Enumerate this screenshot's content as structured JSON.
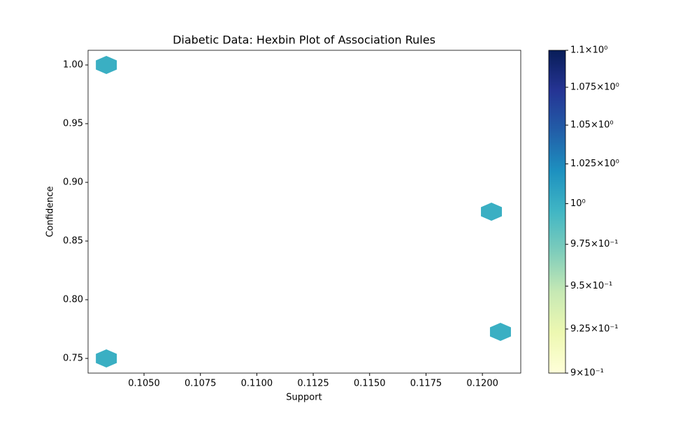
{
  "chart_data": {
    "type": "hexbin",
    "title": "Diabetic Data: Hexbin Plot of Association Rules",
    "x_label": "Support",
    "y_label": "Confidence",
    "x": [
      0.10333,
      0.10333,
      0.1204,
      0.1208
    ],
    "y": [
      1.0,
      0.75,
      0.875,
      0.7726
    ],
    "values": [
      1,
      1,
      1,
      1
    ],
    "xlim": [
      0.10252,
      0.1217
    ],
    "ylim": [
      0.7375,
      1.0125
    ],
    "xticks": [
      {
        "value": 0.105,
        "label": "0.1050"
      },
      {
        "value": 0.1075,
        "label": "0.1075"
      },
      {
        "value": 0.11,
        "label": "0.1100"
      },
      {
        "value": 0.1125,
        "label": "0.1125"
      },
      {
        "value": 0.115,
        "label": "0.1150"
      },
      {
        "value": 0.1175,
        "label": "0.1175"
      },
      {
        "value": 0.12,
        "label": "0.1200"
      }
    ],
    "yticks": [
      0.75,
      {
        "value": 0.8,
        "label": "0.80"
      },
      0.85,
      {
        "value": 0.9,
        "label": "0.90"
      },
      0.95,
      {
        "value": 1.0,
        "label": "1.00"
      }
    ],
    "colorbar": {
      "scale": "log",
      "lim": [
        0.9,
        1.1
      ],
      "ticks": [
        {
          "value": 0.9,
          "label": "9×10⁻¹"
        },
        {
          "value": 0.925,
          "label": "9.25×10⁻¹"
        },
        {
          "value": 0.95,
          "label": "9.5×10⁻¹"
        },
        {
          "value": 0.975,
          "label": "9.75×10⁻¹"
        },
        {
          "value": 1,
          "label": "10⁰"
        },
        {
          "value": 1.025,
          "label": "1.025×10⁰"
        },
        {
          "value": 1.05,
          "label": "1.05×10⁰"
        },
        {
          "value": 1.075,
          "label": "1.075×10⁰"
        },
        {
          "value": 1.1,
          "label": "1.1×10⁰"
        }
      ],
      "colormap": [
        "#ffffd9",
        "#edf8b1",
        "#c7e9b4",
        "#7fcdbb",
        "#41b6c4",
        "#1d91c0",
        "#225ea8",
        "#253494",
        "#081d58"
      ]
    }
  }
}
